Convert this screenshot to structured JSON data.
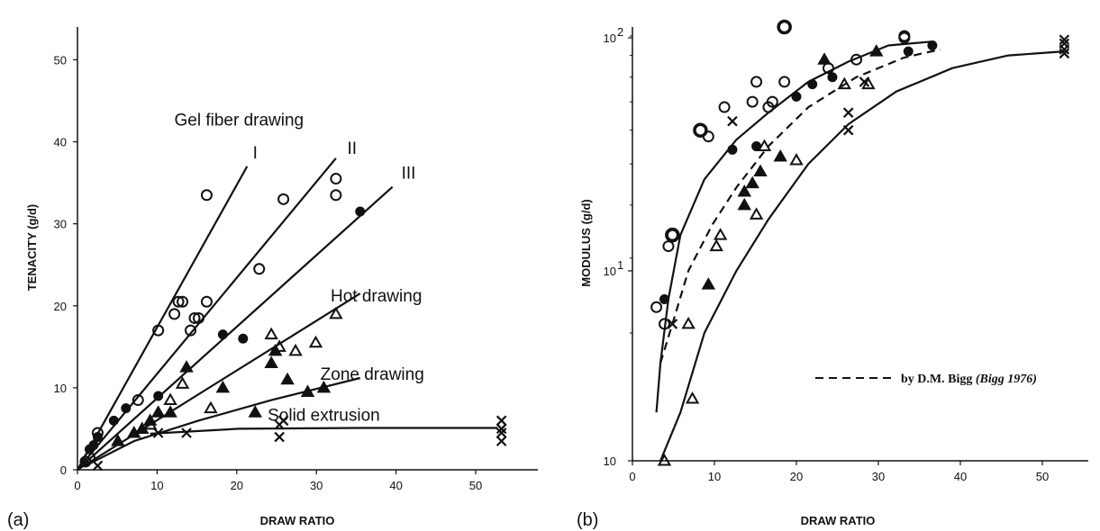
{
  "chart_data": [
    {
      "type": "scatter",
      "panel_label": "(a)",
      "xlabel": "DRAW RATIO",
      "ylabel": "TENACITY (g/d)",
      "xlim": [
        0,
        57
      ],
      "ylim": [
        0,
        54
      ],
      "xticks": [
        "0",
        "10",
        "20",
        "30",
        "40",
        "50"
      ],
      "yticks": [
        "0",
        "10",
        "20",
        "30",
        "40",
        "50"
      ],
      "annotations": [
        {
          "id": "gel",
          "text": "Gel fiber drawing",
          "x": 20,
          "y": 42
        },
        {
          "id": "I",
          "text": "I",
          "x": 22,
          "y": 38
        },
        {
          "id": "II",
          "text": "II",
          "x": 34,
          "y": 38.5
        },
        {
          "id": "III",
          "text": "III",
          "x": 41,
          "y": 35.5
        },
        {
          "id": "hot",
          "text": "Hot drawing",
          "x": 37,
          "y": 20.5
        },
        {
          "id": "zone",
          "text": "Zone drawing",
          "x": 36.5,
          "y": 11
        },
        {
          "id": "solid",
          "text": "Solid extrusion",
          "x": 30.5,
          "y": 6
        }
      ],
      "lines": [
        {
          "name": "I",
          "style": "solid",
          "points": [
            [
              0,
              0
            ],
            [
              21,
              37
            ]
          ]
        },
        {
          "name": "II",
          "style": "solid",
          "points": [
            [
              0,
              0
            ],
            [
              32,
              38
            ]
          ]
        },
        {
          "name": "III",
          "style": "solid",
          "points": [
            [
              0,
              0
            ],
            [
              39,
              34.5
            ]
          ]
        },
        {
          "name": "Hot drawing",
          "style": "solid",
          "points": [
            [
              0,
              0
            ],
            [
              35,
              21.5
            ]
          ]
        },
        {
          "name": "Zone drawing",
          "style": "solid",
          "points": [
            [
              1,
              0.5
            ],
            [
              7,
              3.5
            ],
            [
              15,
              6
            ],
            [
              24,
              8.5
            ],
            [
              35,
              11.2
            ]
          ]
        },
        {
          "name": "Solid extrusion",
          "style": "solid",
          "points": [
            [
              9,
              4.4
            ],
            [
              20,
              5
            ],
            [
              35,
              5.1
            ],
            [
              52,
              5.1
            ]
          ]
        }
      ],
      "series": [
        {
          "marker": "circle-open",
          "points": [
            [
              1,
              1
            ],
            [
              1.5,
              1.5
            ],
            [
              2.5,
              4.5
            ],
            [
              7.5,
              8.5
            ],
            [
              10,
              17
            ],
            [
              12,
              19
            ],
            [
              12.5,
              20.5
            ],
            [
              13,
              20.5
            ],
            [
              14,
              17
            ],
            [
              14.5,
              18.5
            ],
            [
              15,
              18.5
            ],
            [
              16,
              20.5
            ],
            [
              16,
              33.5
            ],
            [
              22.5,
              24.5
            ],
            [
              25.5,
              33
            ],
            [
              32,
              35.5
            ],
            [
              32,
              33.5
            ]
          ]
        },
        {
          "marker": "circle-filled",
          "points": [
            [
              1.5,
              2.5
            ],
            [
              2,
              3
            ],
            [
              2.5,
              4
            ],
            [
              4.5,
              6
            ],
            [
              6,
              7.5
            ],
            [
              10,
              9
            ],
            [
              18,
              16.5
            ],
            [
              20.5,
              16
            ],
            [
              35,
              31.5
            ]
          ]
        },
        {
          "marker": "triangle-filled",
          "points": [
            [
              5,
              3.5
            ],
            [
              7,
              4.5
            ],
            [
              8,
              5
            ],
            [
              9,
              6
            ],
            [
              10,
              7
            ],
            [
              11.5,
              7
            ],
            [
              13.5,
              12.5
            ],
            [
              18,
              10
            ],
            [
              22,
              7
            ],
            [
              24,
              13
            ],
            [
              24.5,
              14.5
            ],
            [
              26,
              11
            ],
            [
              28.5,
              9.5
            ],
            [
              30.5,
              10
            ]
          ]
        },
        {
          "marker": "triangle-open",
          "points": [
            [
              9,
              5.5
            ],
            [
              11.5,
              8.5
            ],
            [
              13,
              10.5
            ],
            [
              16.5,
              7.5
            ],
            [
              24,
              16.5
            ],
            [
              25,
              15
            ],
            [
              27,
              14.5
            ],
            [
              29.5,
              15.5
            ],
            [
              32,
              19
            ]
          ]
        },
        {
          "marker": "cross",
          "points": [
            [
              2.5,
              0.5
            ],
            [
              10,
              4.5
            ],
            [
              13.5,
              4.5
            ],
            [
              25,
              5.5
            ],
            [
              25,
              4
            ],
            [
              25.5,
              6
            ],
            [
              52.5,
              3.5
            ],
            [
              52.5,
              4.5
            ],
            [
              52.5,
              5
            ],
            [
              52.5,
              6
            ]
          ]
        }
      ]
    },
    {
      "type": "scatter",
      "panel_label": "(b)",
      "xlabel": "DRAW RATIO",
      "ylabel": "MODULUS (g/d)",
      "yscale": "log",
      "xlim": [
        0,
        57
      ],
      "ylim": [
        10,
        105
      ],
      "xticks": [
        "0",
        "10",
        "20",
        "30",
        "40",
        "50"
      ],
      "yticks": [
        {
          "value": 10,
          "label": "10"
        },
        {
          "value": 28,
          "label": "10"
        },
        {
          "value": 99,
          "label": "10"
        }
      ],
      "ytick_exponents": [
        "",
        "1",
        "2"
      ],
      "legend": {
        "position": "bottom-right",
        "text": "by D.M. Bigg",
        "text_italic": "(Bigg 1976)",
        "style": "dashed"
      },
      "lines": [
        {
          "style": "solid",
          "points": [
            [
              3,
              13
            ],
            [
              3.5,
              17
            ],
            [
              4.5,
              24
            ],
            [
              6,
              34
            ],
            [
              9,
              46
            ],
            [
              13,
              57
            ],
            [
              17,
              66
            ],
            [
              22,
              78
            ],
            [
              27,
              87
            ],
            [
              32,
              95
            ],
            [
              37.5,
              97
            ]
          ]
        },
        {
          "style": "dashed",
          "points": [
            [
              3.5,
              17
            ],
            [
              5,
              21
            ],
            [
              7,
              28
            ],
            [
              10,
              36
            ],
            [
              13,
              44
            ],
            [
              17,
              55
            ],
            [
              22,
              68
            ],
            [
              28,
              80
            ],
            [
              34,
              89
            ],
            [
              38.5,
              93
            ]
          ]
        },
        {
          "style": "solid",
          "points": [
            [
              3.5,
              10
            ],
            [
              6,
              13
            ],
            [
              9,
              20
            ],
            [
              13,
              28
            ],
            [
              17,
              37
            ],
            [
              22,
              50
            ],
            [
              27,
              62
            ],
            [
              33,
              74
            ],
            [
              40,
              84
            ],
            [
              47,
              90
            ],
            [
              54,
              92
            ]
          ]
        }
      ],
      "series": [
        {
          "marker": "circle-open",
          "points": [
            [
              3,
              23
            ],
            [
              4,
              21
            ],
            [
              4.5,
              32
            ],
            [
              5,
              34
            ],
            [
              9.5,
              58
            ],
            [
              11.5,
              68
            ],
            [
              15,
              70
            ],
            [
              15.5,
              78
            ],
            [
              17,
              68
            ],
            [
              17.5,
              70
            ],
            [
              19,
              78
            ],
            [
              24.5,
              84
            ],
            [
              28,
              88
            ],
            [
              34,
              100
            ],
            [
              34,
              99
            ]
          ]
        },
        {
          "marker": "circle-open-bold",
          "points": [
            [
              5,
              34
            ],
            [
              8.5,
              60
            ],
            [
              19,
              105
            ]
          ]
        },
        {
          "marker": "circle-filled",
          "points": [
            [
              4,
              24
            ],
            [
              12.5,
              54
            ],
            [
              15.5,
              55
            ],
            [
              20.5,
              72
            ],
            [
              22.5,
              77
            ],
            [
              25,
              80
            ],
            [
              34.5,
              92
            ],
            [
              37.5,
              95
            ]
          ]
        },
        {
          "marker": "triangle-filled",
          "points": [
            [
              9.5,
              26
            ],
            [
              14,
              40
            ],
            [
              14,
              43
            ],
            [
              15,
              45
            ],
            [
              16,
              48
            ],
            [
              18.5,
              52
            ],
            [
              24,
              88
            ],
            [
              30.5,
              92
            ]
          ]
        },
        {
          "marker": "triangle-open",
          "points": [
            [
              4,
              10
            ],
            [
              7,
              21
            ],
            [
              7.5,
              14
            ],
            [
              10.5,
              32
            ],
            [
              11,
              34
            ],
            [
              15.5,
              38
            ],
            [
              16.5,
              55
            ],
            [
              20.5,
              51
            ],
            [
              26.5,
              77
            ],
            [
              29.5,
              77
            ]
          ]
        },
        {
          "marker": "cross",
          "points": [
            [
              5,
              21
            ],
            [
              12.5,
              63
            ],
            [
              27,
              60
            ],
            [
              27,
              66
            ],
            [
              29,
              78
            ],
            [
              54,
              91
            ],
            [
              54,
              93
            ],
            [
              54,
              96
            ],
            [
              54,
              98
            ]
          ]
        }
      ]
    }
  ]
}
